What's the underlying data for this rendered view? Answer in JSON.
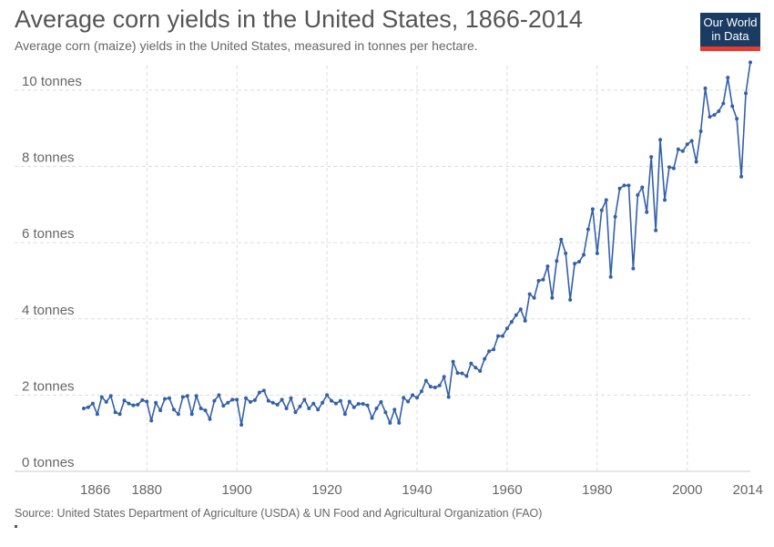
{
  "header": {
    "title": "Average corn yields in the United States, 1866-2014",
    "subtitle": "Average corn (maize) yields in the United States, measured in tonnes per hectare."
  },
  "logo": {
    "line1": "Our World",
    "line2": "in Data",
    "bg_color": "#1a3b62",
    "accent_color": "#e63b2e"
  },
  "footer": {
    "source": "Source: United States Department of Agriculture (USDA) & UN Food and Agricultural Organization (FAO)"
  },
  "chart_data": {
    "type": "line",
    "title": "Average corn yields in the United States, 1866-2014",
    "subtitle": "Average corn (maize) yields in the United States, measured in tonnes per hectare.",
    "xlabel": "",
    "ylabel": "",
    "xlim": [
      1866,
      2014
    ],
    "ylim": [
      0,
      10.5
    ],
    "x_ticks": [
      {
        "value": 1866,
        "label": "1866"
      },
      {
        "value": 1880,
        "label": "1880"
      },
      {
        "value": 1900,
        "label": "1900"
      },
      {
        "value": 1920,
        "label": "1920"
      },
      {
        "value": 1940,
        "label": "1940"
      },
      {
        "value": 1960,
        "label": "1960"
      },
      {
        "value": 1980,
        "label": "1980"
      },
      {
        "value": 2000,
        "label": "2000"
      },
      {
        "value": 2014,
        "label": "2014"
      }
    ],
    "y_ticks": [
      {
        "value": 0,
        "label": "0 tonnes"
      },
      {
        "value": 2,
        "label": "2 tonnes"
      },
      {
        "value": 4,
        "label": "4 tonnes"
      },
      {
        "value": 6,
        "label": "6 tonnes"
      },
      {
        "value": 8,
        "label": "8 tonnes"
      },
      {
        "value": 10,
        "label": "10 tonnes"
      }
    ],
    "grid": true,
    "series_color": "#3360a9",
    "series": [
      {
        "x": [
          1866,
          1867,
          1868,
          1869,
          1870,
          1871,
          1872,
          1873,
          1874,
          1875,
          1876,
          1877,
          1878,
          1879,
          1880,
          1881,
          1882,
          1883,
          1884,
          1885,
          1886,
          1887,
          1888,
          1889,
          1890,
          1891,
          1892,
          1893,
          1894,
          1895,
          1896,
          1897,
          1898,
          1899,
          1900,
          1901,
          1902,
          1903,
          1904,
          1905,
          1906,
          1907,
          1908,
          1909,
          1910,
          1911,
          1912,
          1913,
          1914,
          1915,
          1916,
          1917,
          1918,
          1919,
          1920,
          1921,
          1922,
          1923,
          1924,
          1925,
          1926,
          1927,
          1928,
          1929,
          1930,
          1931,
          1932,
          1933,
          1934,
          1935,
          1936,
          1937,
          1938,
          1939,
          1940,
          1941,
          1942,
          1943,
          1944,
          1945,
          1946,
          1947,
          1948,
          1949,
          1950,
          1951,
          1952,
          1953,
          1954,
          1955,
          1956,
          1957,
          1958,
          1959,
          1960,
          1961,
          1962,
          1963,
          1964,
          1965,
          1966,
          1967,
          1968,
          1969,
          1970,
          1971,
          1972,
          1973,
          1974,
          1975,
          1976,
          1977,
          1978,
          1979,
          1980,
          1981,
          1982,
          1983,
          1984,
          1985,
          1986,
          1987,
          1988,
          1989,
          1990,
          1991,
          1992,
          1993,
          1994,
          1995,
          1996,
          1997,
          1998,
          1999,
          2000,
          2001,
          2002,
          2003,
          2004,
          2005,
          2006,
          2007,
          2008,
          2009,
          2010,
          2011,
          2012,
          2013,
          2014
        ],
        "y": [
          1.65,
          1.68,
          1.78,
          1.5,
          1.95,
          1.82,
          1.98,
          1.55,
          1.5,
          1.86,
          1.78,
          1.73,
          1.75,
          1.87,
          1.83,
          1.33,
          1.8,
          1.6,
          1.9,
          1.92,
          1.62,
          1.5,
          1.95,
          1.98,
          1.5,
          1.98,
          1.65,
          1.6,
          1.37,
          1.85,
          2.0,
          1.72,
          1.8,
          1.88,
          1.88,
          1.22,
          1.92,
          1.82,
          1.87,
          2.07,
          2.12,
          1.85,
          1.8,
          1.75,
          1.88,
          1.65,
          1.92,
          1.55,
          1.7,
          1.88,
          1.65,
          1.78,
          1.62,
          1.8,
          2.0,
          1.85,
          1.78,
          1.85,
          1.5,
          1.83,
          1.68,
          1.77,
          1.77,
          1.73,
          1.4,
          1.65,
          1.82,
          1.55,
          1.27,
          1.62,
          1.27,
          1.93,
          1.83,
          2.0,
          1.93,
          2.1,
          2.38,
          2.22,
          2.2,
          2.25,
          2.48,
          1.95,
          2.88,
          2.58,
          2.57,
          2.5,
          2.83,
          2.72,
          2.63,
          2.95,
          3.15,
          3.2,
          3.55,
          3.55,
          3.75,
          3.92,
          4.1,
          4.25,
          3.95,
          4.65,
          4.55,
          5.0,
          5.03,
          5.38,
          4.55,
          5.52,
          6.08,
          5.72,
          4.5,
          5.45,
          5.5,
          5.68,
          6.35,
          6.88,
          5.72,
          6.85,
          7.12,
          5.1,
          6.68,
          7.42,
          7.5,
          7.5,
          5.32,
          7.25,
          7.45,
          6.8,
          8.25,
          6.32,
          8.7,
          7.12,
          7.98,
          7.95,
          8.45,
          8.4,
          8.58,
          8.67,
          8.12,
          8.92,
          10.05,
          9.3,
          9.35,
          9.45,
          9.65,
          10.33,
          9.58,
          9.25,
          7.73,
          9.92,
          10.73
        ]
      }
    ]
  }
}
